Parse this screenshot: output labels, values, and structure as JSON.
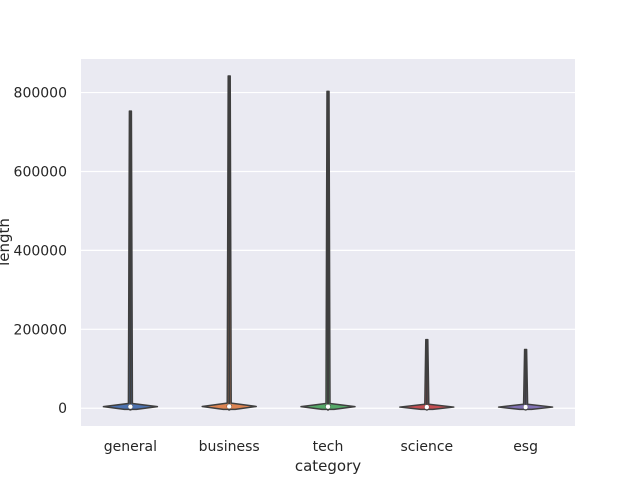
{
  "chart_data": {
    "type": "violin",
    "xlabel": "category",
    "ylabel": "length",
    "ylim": [
      -45000,
      885000
    ],
    "yticks": [
      0,
      200000,
      400000,
      600000,
      800000
    ],
    "ytick_labels": [
      "0",
      "200000",
      "400000",
      "600000",
      "800000"
    ],
    "categories": [
      "general",
      "business",
      "tech",
      "science",
      "esg"
    ],
    "series": [
      {
        "category": "general",
        "color": "#4c72b0",
        "min": 0,
        "median": 4000,
        "q1": 2000,
        "q3": 8000,
        "max": 753000
      },
      {
        "category": "business",
        "color": "#dd8452",
        "min": 0,
        "median": 4500,
        "q1": 2000,
        "q3": 9000,
        "max": 842000
      },
      {
        "category": "tech",
        "color": "#55a868",
        "min": 0,
        "median": 4000,
        "q1": 2000,
        "q3": 8000,
        "max": 803000
      },
      {
        "category": "science",
        "color": "#c44e52",
        "min": 0,
        "median": 3000,
        "q1": 1500,
        "q3": 6000,
        "max": 174000
      },
      {
        "category": "esg",
        "color": "#8172b3",
        "min": 0,
        "median": 3000,
        "q1": 1500,
        "q3": 6000,
        "max": 149000
      }
    ],
    "grid": true,
    "background": "#eaeaf2",
    "grid_color": "#ffffff"
  }
}
